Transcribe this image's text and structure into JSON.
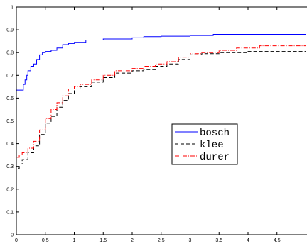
{
  "chart_data": {
    "type": "line",
    "title": "",
    "xlabel": "",
    "ylabel": "",
    "xlim": [
      0,
      5
    ],
    "ylim": [
      0,
      1
    ],
    "grid": false,
    "legend_position": "center-right",
    "x_ticks": [
      "0",
      "0.5",
      "1",
      "1.5",
      "2",
      "2.5",
      "3",
      "3.5",
      "4",
      "4.5"
    ],
    "y_ticks": [
      "0",
      "0.1",
      "0.2",
      "0.3",
      "0.4",
      "0.5",
      "0.6",
      "0.7",
      "0.8",
      "0.9",
      "1"
    ],
    "series": [
      {
        "name": "bosch",
        "color": "#0000ff",
        "dash": "solid",
        "points": [
          [
            0,
            0
          ],
          [
            0,
            0.635
          ],
          [
            0.12,
            0.635
          ],
          [
            0.12,
            0.66
          ],
          [
            0.15,
            0.68
          ],
          [
            0.18,
            0.7
          ],
          [
            0.2,
            0.72
          ],
          [
            0.25,
            0.74
          ],
          [
            0.3,
            0.75
          ],
          [
            0.35,
            0.77
          ],
          [
            0.4,
            0.79
          ],
          [
            0.45,
            0.8
          ],
          [
            0.5,
            0.805
          ],
          [
            0.6,
            0.81
          ],
          [
            0.7,
            0.82
          ],
          [
            0.8,
            0.835
          ],
          [
            0.9,
            0.84
          ],
          [
            1.0,
            0.845
          ],
          [
            1.2,
            0.855
          ],
          [
            1.5,
            0.86
          ],
          [
            2.0,
            0.865
          ],
          [
            2.2,
            0.87
          ],
          [
            2.5,
            0.872
          ],
          [
            3.0,
            0.875
          ],
          [
            3.4,
            0.88
          ],
          [
            4.0,
            0.88
          ],
          [
            5.0,
            0.88
          ]
        ]
      },
      {
        "name": "klee",
        "color": "#000000",
        "dash": "dashed",
        "points": [
          [
            0,
            0
          ],
          [
            0,
            0.29
          ],
          [
            0.05,
            0.31
          ],
          [
            0.1,
            0.33
          ],
          [
            0.2,
            0.36
          ],
          [
            0.3,
            0.39
          ],
          [
            0.4,
            0.44
          ],
          [
            0.5,
            0.49
          ],
          [
            0.6,
            0.52
          ],
          [
            0.7,
            0.56
          ],
          [
            0.8,
            0.59
          ],
          [
            0.9,
            0.62
          ],
          [
            1.0,
            0.64
          ],
          [
            1.1,
            0.65
          ],
          [
            1.3,
            0.67
          ],
          [
            1.5,
            0.69
          ],
          [
            1.7,
            0.71
          ],
          [
            2.0,
            0.72
          ],
          [
            2.2,
            0.725
          ],
          [
            2.4,
            0.74
          ],
          [
            2.6,
            0.75
          ],
          [
            2.8,
            0.77
          ],
          [
            3.0,
            0.79
          ],
          [
            3.2,
            0.795
          ],
          [
            3.5,
            0.8
          ],
          [
            4.0,
            0.805
          ],
          [
            5.0,
            0.805
          ]
        ]
      },
      {
        "name": "durer",
        "color": "#ff0000",
        "dash": "dashdot",
        "points": [
          [
            0,
            0
          ],
          [
            0,
            0.34
          ],
          [
            0.05,
            0.35
          ],
          [
            0.1,
            0.36
          ],
          [
            0.2,
            0.38
          ],
          [
            0.3,
            0.41
          ],
          [
            0.4,
            0.46
          ],
          [
            0.5,
            0.51
          ],
          [
            0.6,
            0.55
          ],
          [
            0.7,
            0.58
          ],
          [
            0.8,
            0.61
          ],
          [
            0.9,
            0.64
          ],
          [
            1.0,
            0.65
          ],
          [
            1.1,
            0.66
          ],
          [
            1.3,
            0.68
          ],
          [
            1.5,
            0.7
          ],
          [
            1.7,
            0.72
          ],
          [
            2.0,
            0.73
          ],
          [
            2.2,
            0.74
          ],
          [
            2.4,
            0.75
          ],
          [
            2.6,
            0.76
          ],
          [
            2.8,
            0.78
          ],
          [
            3.0,
            0.795
          ],
          [
            3.2,
            0.8
          ],
          [
            3.5,
            0.81
          ],
          [
            3.8,
            0.82
          ],
          [
            4.2,
            0.83
          ],
          [
            5.0,
            0.83
          ]
        ]
      }
    ]
  }
}
